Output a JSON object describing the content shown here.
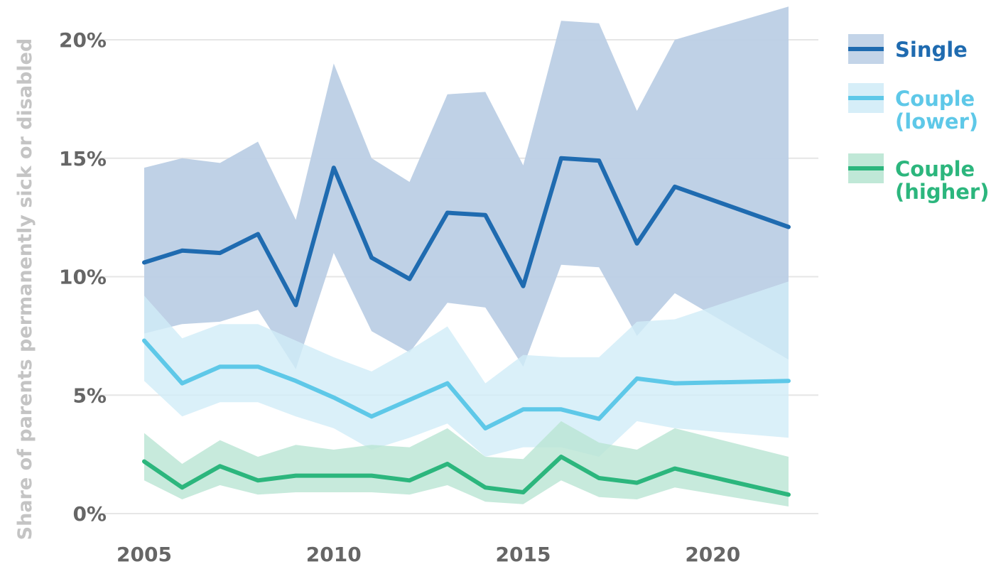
{
  "chart_data": {
    "type": "line",
    "title": "",
    "xlabel": "",
    "ylabel": "Share of parents permanently sick or disabled",
    "xlim": [
      2005,
      2022
    ],
    "ylim": [
      0,
      20
    ],
    "x_ticks": [
      2005,
      2010,
      2015,
      2020
    ],
    "x_tick_labels": [
      "2005",
      "2010",
      "2015",
      "2020"
    ],
    "y_ticks": [
      0,
      5,
      10,
      15,
      20
    ],
    "y_tick_labels": [
      "0%",
      "5%",
      "10%",
      "15%",
      "20%"
    ],
    "grid": "horizontal",
    "legend_position": "right",
    "x": [
      2005,
      2006,
      2007,
      2008,
      2009,
      2010,
      2011,
      2012,
      2013,
      2014,
      2015,
      2016,
      2017,
      2018,
      2019,
      2022
    ],
    "series": [
      {
        "name": "Single",
        "color": "#1f6bb0",
        "band_color": "#bccfe5",
        "values": [
          10.6,
          11.1,
          11.0,
          11.8,
          8.8,
          14.6,
          10.8,
          9.9,
          12.7,
          12.6,
          9.6,
          15.0,
          14.9,
          11.4,
          13.8,
          12.1
        ],
        "lower": [
          7.6,
          8.0,
          8.1,
          8.6,
          6.1,
          11.0,
          7.7,
          6.8,
          8.9,
          8.7,
          6.2,
          10.5,
          10.4,
          7.5,
          9.3,
          6.5
        ],
        "upper": [
          14.6,
          15.0,
          14.8,
          15.7,
          12.4,
          19.0,
          15.0,
          14.0,
          17.7,
          17.8,
          14.7,
          20.8,
          20.7,
          17.0,
          20.0,
          21.4
        ]
      },
      {
        "name": "Couple (lower)",
        "label_lines": [
          "Couple",
          "(lower)"
        ],
        "color": "#5ec8e8",
        "band_color": "#d1ecf7",
        "values": [
          7.3,
          5.5,
          6.2,
          6.2,
          5.6,
          4.9,
          4.1,
          4.8,
          5.5,
          3.6,
          4.4,
          4.4,
          4.0,
          5.7,
          5.5,
          5.6
        ],
        "lower": [
          5.6,
          4.1,
          4.7,
          4.7,
          4.1,
          3.6,
          2.7,
          3.2,
          3.8,
          2.4,
          2.8,
          2.8,
          2.4,
          3.9,
          3.6,
          3.2
        ],
        "upper": [
          9.2,
          7.4,
          8.0,
          8.0,
          7.3,
          6.6,
          6.0,
          6.9,
          7.9,
          5.5,
          6.7,
          6.6,
          6.6,
          8.1,
          8.2,
          9.8
        ]
      },
      {
        "name": "Couple (higher)",
        "label_lines": [
          "Couple",
          "(higher)"
        ],
        "color": "#2cb67d",
        "band_color": "#b9e5d3",
        "values": [
          2.2,
          1.1,
          2.0,
          1.4,
          1.6,
          1.6,
          1.6,
          1.4,
          2.1,
          1.1,
          0.9,
          2.4,
          1.5,
          1.3,
          1.9,
          0.8
        ],
        "lower": [
          1.4,
          0.6,
          1.2,
          0.8,
          0.9,
          0.9,
          0.9,
          0.8,
          1.2,
          0.5,
          0.4,
          1.4,
          0.7,
          0.6,
          1.1,
          0.3
        ],
        "upper": [
          3.4,
          2.1,
          3.1,
          2.4,
          2.9,
          2.7,
          2.9,
          2.8,
          3.6,
          2.4,
          2.3,
          3.9,
          3.0,
          2.7,
          3.6,
          2.4
        ]
      }
    ]
  }
}
